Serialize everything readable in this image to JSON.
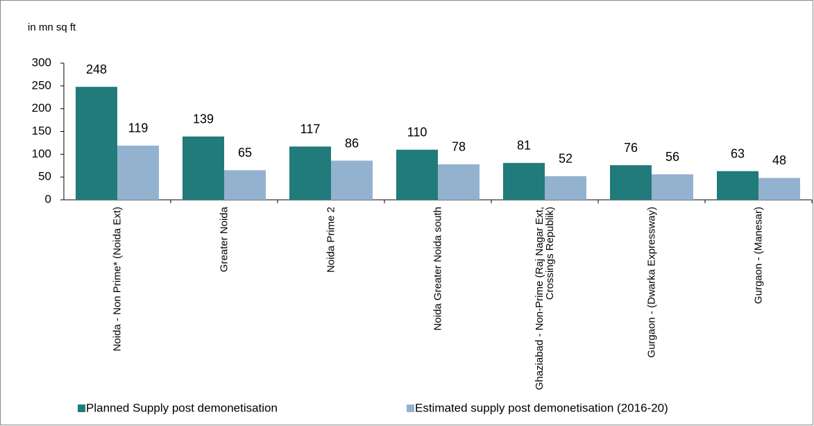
{
  "chart_data": {
    "type": "bar",
    "y_axis_label": "in mn sq ft",
    "categories": [
      "Noida - Non Prime* (Noida Ext)",
      "Greater Noida",
      "Noida Prime 2",
      "Noida Greater Noida south",
      "Ghaziabad - Non-Prime (Raj Nagar Ext, Crossings Republik)",
      "Gurgaon - (Dwarka Expressway)",
      "Gurgaon - (Manesar)"
    ],
    "series": [
      {
        "name": "Planned Supply post demonetisation",
        "color": "#217b7b",
        "values": [
          248,
          139,
          117,
          110,
          81,
          76,
          63
        ]
      },
      {
        "name": "Estimated supply post demonetisation (2016-20)",
        "color": "#93b2cf",
        "values": [
          119,
          65,
          86,
          78,
          52,
          56,
          48
        ]
      }
    ],
    "ylim": [
      0,
      300
    ],
    "yticks": [
      0,
      50,
      100,
      150,
      200,
      250,
      300
    ],
    "grid": false,
    "legend": "bottom"
  }
}
